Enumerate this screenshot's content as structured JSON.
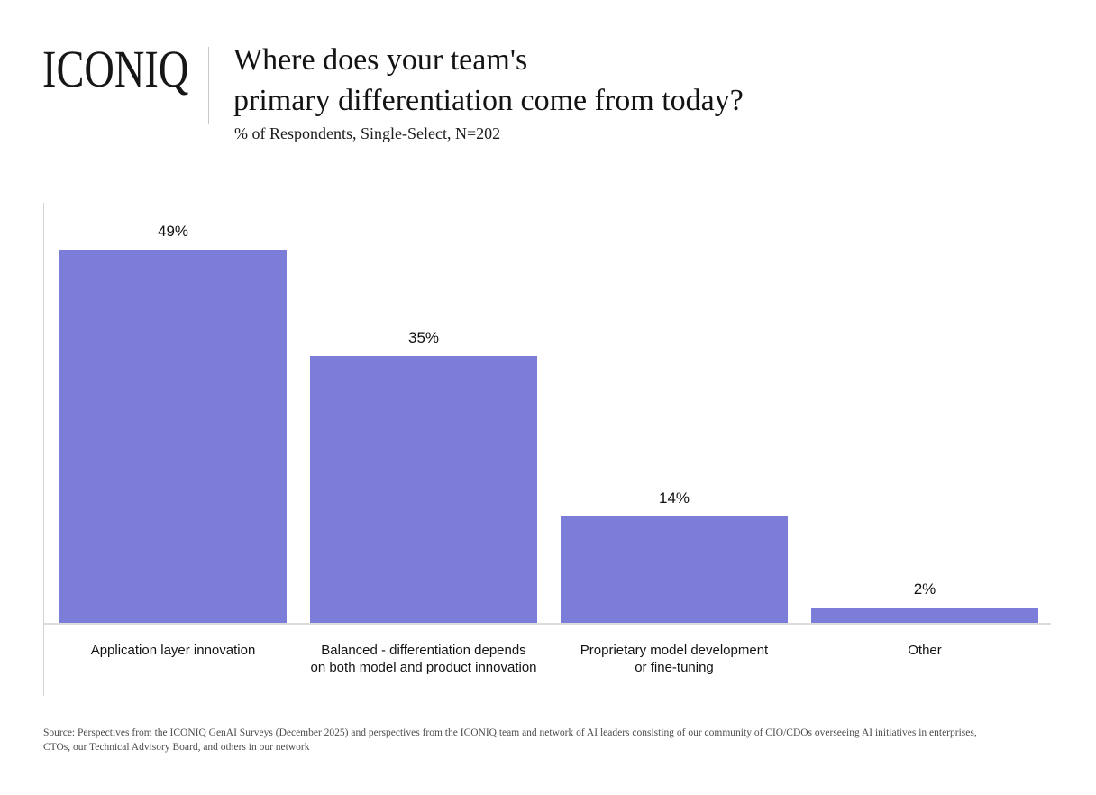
{
  "header": {
    "logo": "ICONIQ",
    "title": "Where does your team's\nprimary differentiation come from today?",
    "subtitle": "% of Respondents, Single-Select, N=202"
  },
  "chart_data": {
    "type": "bar",
    "title": "Where does your team's primary differentiation come from today?",
    "subtitle": "% of Respondents, Single-Select, N=202",
    "categories": [
      "Application layer innovation",
      "Balanced - differentiation depends on both model and product innovation",
      "Proprietary model development or fine-tuning",
      "Other"
    ],
    "tick_labels": [
      "Application layer innovation",
      "Balanced - differentiation depends\non both model and product innovation",
      "Proprietary model development\nor fine-tuning",
      "Other"
    ],
    "values": [
      49,
      35,
      14,
      2
    ],
    "labels": [
      "49%",
      "35%",
      "14%",
      "2%"
    ],
    "unit": "%",
    "ylim": [
      0,
      55
    ],
    "grid": false,
    "legend": "none",
    "bar_color": "#7b7dd8",
    "axis_color": "#d2d2d2"
  },
  "footer": {
    "source": "Source: Perspectives from the ICONIQ GenAI Surveys (December 2025) and perspectives from the ICONIQ team and network of AI leaders consisting of our community of CIO/CDOs overseeing AI initiatives in enterprises, CTOs, our Technical Advisory Board, and others in our network"
  }
}
